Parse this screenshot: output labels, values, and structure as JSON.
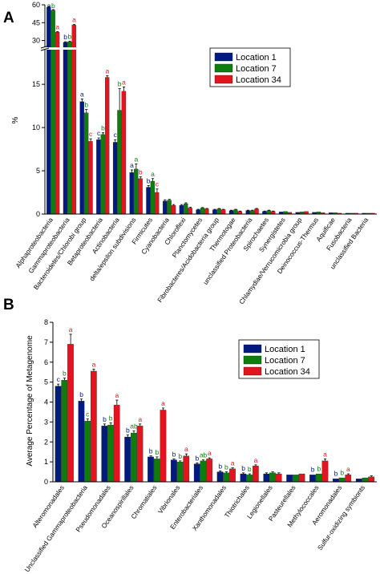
{
  "colors": {
    "location1": "#001a80",
    "location7": "#0e7d0e",
    "location34": "#e3141e"
  },
  "chart_data": [
    {
      "panel": "A",
      "type": "bar",
      "ylabel": "%",
      "ylim_lower": [
        0,
        19
      ],
      "ylim_upper": [
        25,
        60
      ],
      "yticks_lower": [
        "0",
        "5",
        "10",
        "15"
      ],
      "yticks_upper": [
        "30",
        "45",
        "60"
      ],
      "series": [
        {
          "name": "Location 1"
        },
        {
          "name": "Location 7"
        },
        {
          "name": "Location 34"
        }
      ],
      "categories": [
        {
          "label": "Alphaproteobacteria",
          "values": [
            58,
            55.5,
            37
          ],
          "err": [
            0.5,
            0.5,
            0.5
          ],
          "sig": [
            "a",
            "b",
            "a"
          ]
        },
        {
          "label": "Gammaproteobacteria",
          "values": [
            28.5,
            29,
            43
          ],
          "err": [
            0.5,
            0.5,
            0.5
          ],
          "sig": [
            "b",
            "b",
            "a"
          ]
        },
        {
          "label": "Bacteroidetes/Chlorobi group",
          "values": [
            13,
            11.7,
            8.4
          ],
          "err": [
            0.3,
            0.4,
            0.3
          ],
          "sig": [
            "a",
            "b",
            "c"
          ]
        },
        {
          "label": "Betaproteobacteria",
          "values": [
            8.6,
            9.2,
            15.8
          ],
          "err": [
            0.2,
            0.2,
            0.2
          ],
          "sig": [
            "c",
            "b",
            "a"
          ]
        },
        {
          "label": "Actinobacteria",
          "values": [
            8.3,
            12,
            14.2
          ],
          "err": [
            0.3,
            2.5,
            0.5
          ],
          "sig": [
            "c",
            "b",
            "a"
          ]
        },
        {
          "label": "delta/epsilon subdivisions",
          "values": [
            4.8,
            5.2,
            4.1
          ],
          "err": [
            0.3,
            0.6,
            0.2
          ],
          "sig": [
            "a",
            "a",
            "b"
          ]
        },
        {
          "label": "Firmicutes",
          "values": [
            3.1,
            3.8,
            2.5
          ],
          "err": [
            0.2,
            0.3,
            0.4
          ],
          "sig": [
            "b",
            "a",
            "c"
          ]
        },
        {
          "label": "Cyanobacteria",
          "values": [
            1.5,
            1.6,
            1.0
          ],
          "err": [
            0.15,
            0.1,
            0.1
          ],
          "sig": [
            "",
            "",
            ""
          ]
        },
        {
          "label": "Chloroflexi",
          "values": [
            1.0,
            1.2,
            0.7
          ],
          "err": [
            0.1,
            0.1,
            0.1
          ],
          "sig": [
            "",
            "",
            ""
          ]
        },
        {
          "label": "Planctomycetes",
          "values": [
            0.5,
            0.7,
            0.6
          ],
          "err": [
            0.05,
            0.05,
            0.05
          ],
          "sig": [
            "",
            "",
            ""
          ]
        },
        {
          "label": "Fibrobacteres/Acidobacteria group",
          "values": [
            0.5,
            0.6,
            0.5
          ],
          "err": [
            0.05,
            0.05,
            0.05
          ],
          "sig": [
            "",
            "",
            ""
          ]
        },
        {
          "label": "Thermotogae",
          "values": [
            0.4,
            0.5,
            0.3
          ],
          "err": [
            0.05,
            0.05,
            0.05
          ],
          "sig": [
            "",
            "",
            ""
          ]
        },
        {
          "label": "unclassified Proteobacteria",
          "values": [
            0.4,
            0.4,
            0.6
          ],
          "err": [
            0.05,
            0.05,
            0.05
          ],
          "sig": [
            "",
            "",
            ""
          ]
        },
        {
          "label": "Spirochaetes",
          "values": [
            0.3,
            0.4,
            0.3
          ],
          "err": [
            0.05,
            0.05,
            0.05
          ],
          "sig": [
            "",
            "",
            ""
          ]
        },
        {
          "label": "Synergistetes",
          "values": [
            0.25,
            0.3,
            0.2
          ],
          "err": [
            0.03,
            0.03,
            0.03
          ],
          "sig": [
            "",
            "",
            ""
          ]
        },
        {
          "label": "Chlamydiae/Verrucomicrobia group",
          "values": [
            0.2,
            0.25,
            0.3
          ],
          "err": [
            0.03,
            0.03,
            0.03
          ],
          "sig": [
            "",
            "",
            ""
          ]
        },
        {
          "label": "Deinococcus-Thermus",
          "values": [
            0.2,
            0.25,
            0.15
          ],
          "err": [
            0.03,
            0.03,
            0.03
          ],
          "sig": [
            "",
            "",
            ""
          ]
        },
        {
          "label": "Aquificae",
          "values": [
            0.15,
            0.15,
            0.1
          ],
          "err": [
            0.02,
            0.02,
            0.02
          ],
          "sig": [
            "",
            "",
            ""
          ]
        },
        {
          "label": "Fusobacteria",
          "values": [
            0.1,
            0.1,
            0.1
          ],
          "err": [
            0.02,
            0.02,
            0.02
          ],
          "sig": [
            "",
            "",
            ""
          ]
        },
        {
          "label": "unclassified Bacteria",
          "values": [
            0.1,
            0.1,
            0.1
          ],
          "err": [
            0.02,
            0.02,
            0.02
          ],
          "sig": [
            "",
            "",
            ""
          ]
        }
      ]
    },
    {
      "panel": "B",
      "type": "bar",
      "ylabel": "Average Percentage of Metagenome",
      "ylim": [
        0,
        8
      ],
      "yticks": [
        "0",
        "1",
        "2",
        "3",
        "4",
        "5",
        "6",
        "7",
        "8"
      ],
      "series": [
        {
          "name": "Location 1"
        },
        {
          "name": "Location 7"
        },
        {
          "name": "Location 34"
        }
      ],
      "categories": [
        {
          "label": "Alteromonadales",
          "values": [
            4.8,
            5.1,
            6.9
          ],
          "err": [
            0.1,
            0.1,
            0.5
          ],
          "sig": [
            "c",
            "b",
            "a"
          ]
        },
        {
          "label": "Unclassified Gammaproteobacteria",
          "values": [
            4.05,
            3.05,
            5.55
          ],
          "err": [
            0.1,
            0.1,
            0.1
          ],
          "sig": [
            "b",
            "c",
            "a"
          ]
        },
        {
          "label": "Pseudomonadales",
          "values": [
            2.8,
            2.85,
            3.85
          ],
          "err": [
            0.1,
            0.1,
            0.25
          ],
          "sig": [
            "b",
            "b",
            "a"
          ]
        },
        {
          "label": "Oceanospirillales",
          "values": [
            2.25,
            2.45,
            2.8
          ],
          "err": [
            0.1,
            0.1,
            0.1
          ],
          "sig": [
            "b",
            "ab",
            "a"
          ]
        },
        {
          "label": "Chromatiales",
          "values": [
            1.25,
            1.15,
            3.6
          ],
          "err": [
            0.05,
            0.1,
            0.1
          ],
          "sig": [
            "b",
            "b",
            "a"
          ]
        },
        {
          "label": "Vibrionales",
          "values": [
            1.1,
            1.0,
            1.3
          ],
          "err": [
            0.05,
            0.05,
            0.1
          ],
          "sig": [
            "b",
            "b",
            "a"
          ]
        },
        {
          "label": "Enterobacteriales",
          "values": [
            0.9,
            1.05,
            1.15
          ],
          "err": [
            0.05,
            0.05,
            0.05
          ],
          "sig": [
            "b",
            "ab",
            "a"
          ]
        },
        {
          "label": "Xanthomonadales",
          "values": [
            0.5,
            0.45,
            0.65
          ],
          "err": [
            0.05,
            0.05,
            0.05
          ],
          "sig": [
            "b",
            "b",
            "a"
          ]
        },
        {
          "label": "Thiotrichales",
          "values": [
            0.4,
            0.35,
            0.8
          ],
          "err": [
            0.05,
            0.05,
            0.05
          ],
          "sig": [
            "b",
            "b",
            "a"
          ]
        },
        {
          "label": "Legionellales",
          "values": [
            0.4,
            0.45,
            0.4
          ],
          "err": [
            0.05,
            0.05,
            0.05
          ],
          "sig": [
            "",
            "",
            ""
          ]
        },
        {
          "label": "Pasteurellales",
          "values": [
            0.35,
            0.35,
            0.4
          ],
          "err": [
            0.03,
            0.03,
            0.03
          ],
          "sig": [
            "",
            "",
            ""
          ]
        },
        {
          "label": "Methylococcales",
          "values": [
            0.35,
            0.4,
            1.05
          ],
          "err": [
            0.03,
            0.03,
            0.1
          ],
          "sig": [
            "b",
            "b",
            "a"
          ]
        },
        {
          "label": "Aeromonadales",
          "values": [
            0.15,
            0.2,
            0.35
          ],
          "err": [
            0.03,
            0.03,
            0.05
          ],
          "sig": [
            "b",
            "b",
            "a"
          ]
        },
        {
          "label": "Sulfur-oxidizing symbionts",
          "values": [
            0.15,
            0.2,
            0.25
          ],
          "err": [
            0.03,
            0.03,
            0.05
          ],
          "sig": [
            "",
            "",
            ""
          ]
        }
      ]
    }
  ]
}
